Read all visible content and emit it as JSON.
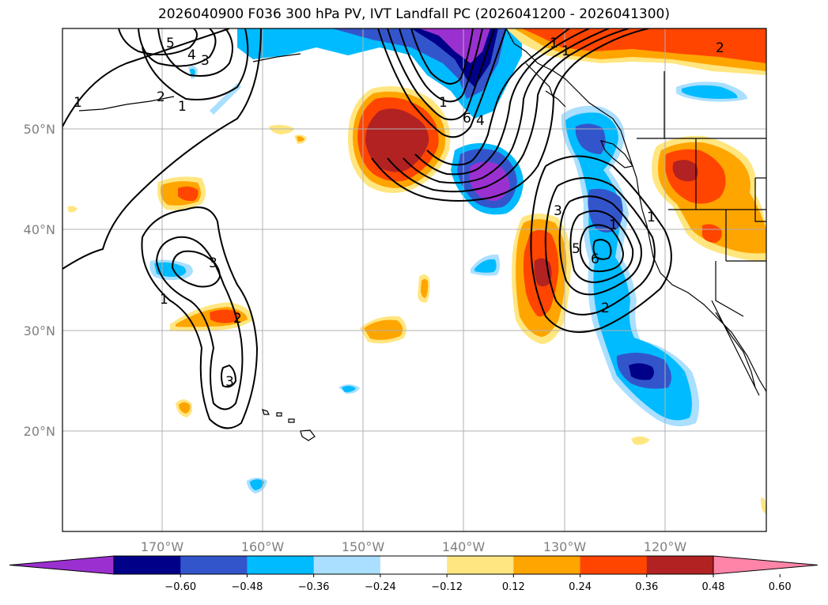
{
  "title": "2026040900 F036 300 hPa PV, IVT Landfall PC (2026041200 - 2026041300)",
  "lat_axis": [
    "50°N",
    "40°N",
    "30°N",
    "20°N"
  ],
  "lon_axis": [
    "170°W",
    "160°W",
    "150°W",
    "140°W",
    "130°W",
    "120°W"
  ],
  "colorbar": {
    "ticks": [
      "−0.60",
      "−0.48",
      "−0.36",
      "−0.24",
      "−0.12",
      "0.12",
      "0.24",
      "0.36",
      "0.48",
      "0.60"
    ],
    "colors": [
      "#9b30d0",
      "#000088",
      "#3355cc",
      "#00bbff",
      "#aadfff",
      "#ffffff",
      "#ffe680",
      "#ffa500",
      "#ff4500",
      "#b22222",
      "#ff85a8"
    ]
  },
  "contour_labels": [
    "5",
    "4",
    "3",
    "2",
    "1",
    "1",
    "1",
    "1",
    "1",
    "6",
    "4",
    "2",
    "1",
    "3",
    "5",
    "6",
    "1",
    "2",
    "3",
    "1",
    "2",
    "3",
    "2",
    "1"
  ],
  "palette": {
    "coast": "#000000",
    "grid": "#b0b0b0"
  }
}
